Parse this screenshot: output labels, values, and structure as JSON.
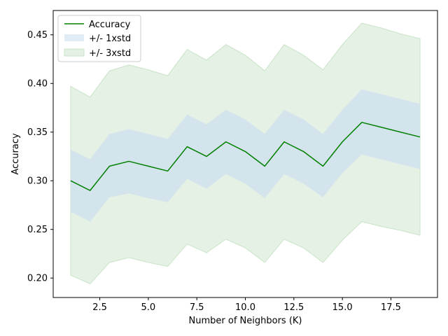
{
  "chart_data": {
    "type": "line",
    "xlabel": "Number of Neighbors (K)",
    "ylabel": "Accuracy",
    "xlim": [
      0.1,
      19.9
    ],
    "ylim": [
      0.18,
      0.475
    ],
    "xticks": [
      2.5,
      5.0,
      7.5,
      10.0,
      12.5,
      15.0,
      17.5
    ],
    "xtick_labels": [
      "2.5",
      "5.0",
      "7.5",
      "10.0",
      "12.5",
      "15.0",
      "17.5"
    ],
    "yticks": [
      0.2,
      0.25,
      0.3,
      0.35,
      0.4,
      0.45
    ],
    "ytick_labels": [
      "0.20",
      "0.25",
      "0.30",
      "0.35",
      "0.40",
      "0.45"
    ],
    "grid": false,
    "legend_position": "top-left",
    "x": [
      1,
      2,
      3,
      4,
      5,
      6,
      7,
      8,
      9,
      10,
      11,
      12,
      13,
      14,
      15,
      16,
      17,
      18,
      19
    ],
    "series": [
      {
        "name": "Accuracy",
        "color": "#008000",
        "values": [
          0.3,
          0.29,
          0.315,
          0.32,
          0.315,
          0.31,
          0.335,
          0.325,
          0.34,
          0.33,
          0.315,
          0.34,
          0.33,
          0.315,
          0.34,
          0.36,
          0.355,
          0.35,
          0.345
        ]
      }
    ],
    "bands": [
      {
        "name": "+/- 1xstd",
        "color": "#cfdff0",
        "lower": [
          0.268,
          0.258,
          0.283,
          0.287,
          0.282,
          0.278,
          0.302,
          0.292,
          0.307,
          0.297,
          0.282,
          0.307,
          0.297,
          0.283,
          0.308,
          0.327,
          0.322,
          0.317,
          0.312
        ],
        "upper": [
          0.332,
          0.322,
          0.348,
          0.353,
          0.348,
          0.343,
          0.368,
          0.358,
          0.373,
          0.363,
          0.348,
          0.373,
          0.363,
          0.348,
          0.373,
          0.394,
          0.389,
          0.384,
          0.379
        ]
      },
      {
        "name": "+/- 3xstd",
        "color": "#e3f0e3",
        "lower": [
          0.203,
          0.194,
          0.216,
          0.221,
          0.216,
          0.212,
          0.235,
          0.226,
          0.24,
          0.231,
          0.216,
          0.24,
          0.231,
          0.216,
          0.239,
          0.258,
          0.253,
          0.249,
          0.244
        ],
        "upper": [
          0.397,
          0.386,
          0.413,
          0.419,
          0.414,
          0.408,
          0.435,
          0.424,
          0.44,
          0.429,
          0.413,
          0.44,
          0.429,
          0.414,
          0.44,
          0.462,
          0.457,
          0.451,
          0.446
        ]
      }
    ]
  }
}
